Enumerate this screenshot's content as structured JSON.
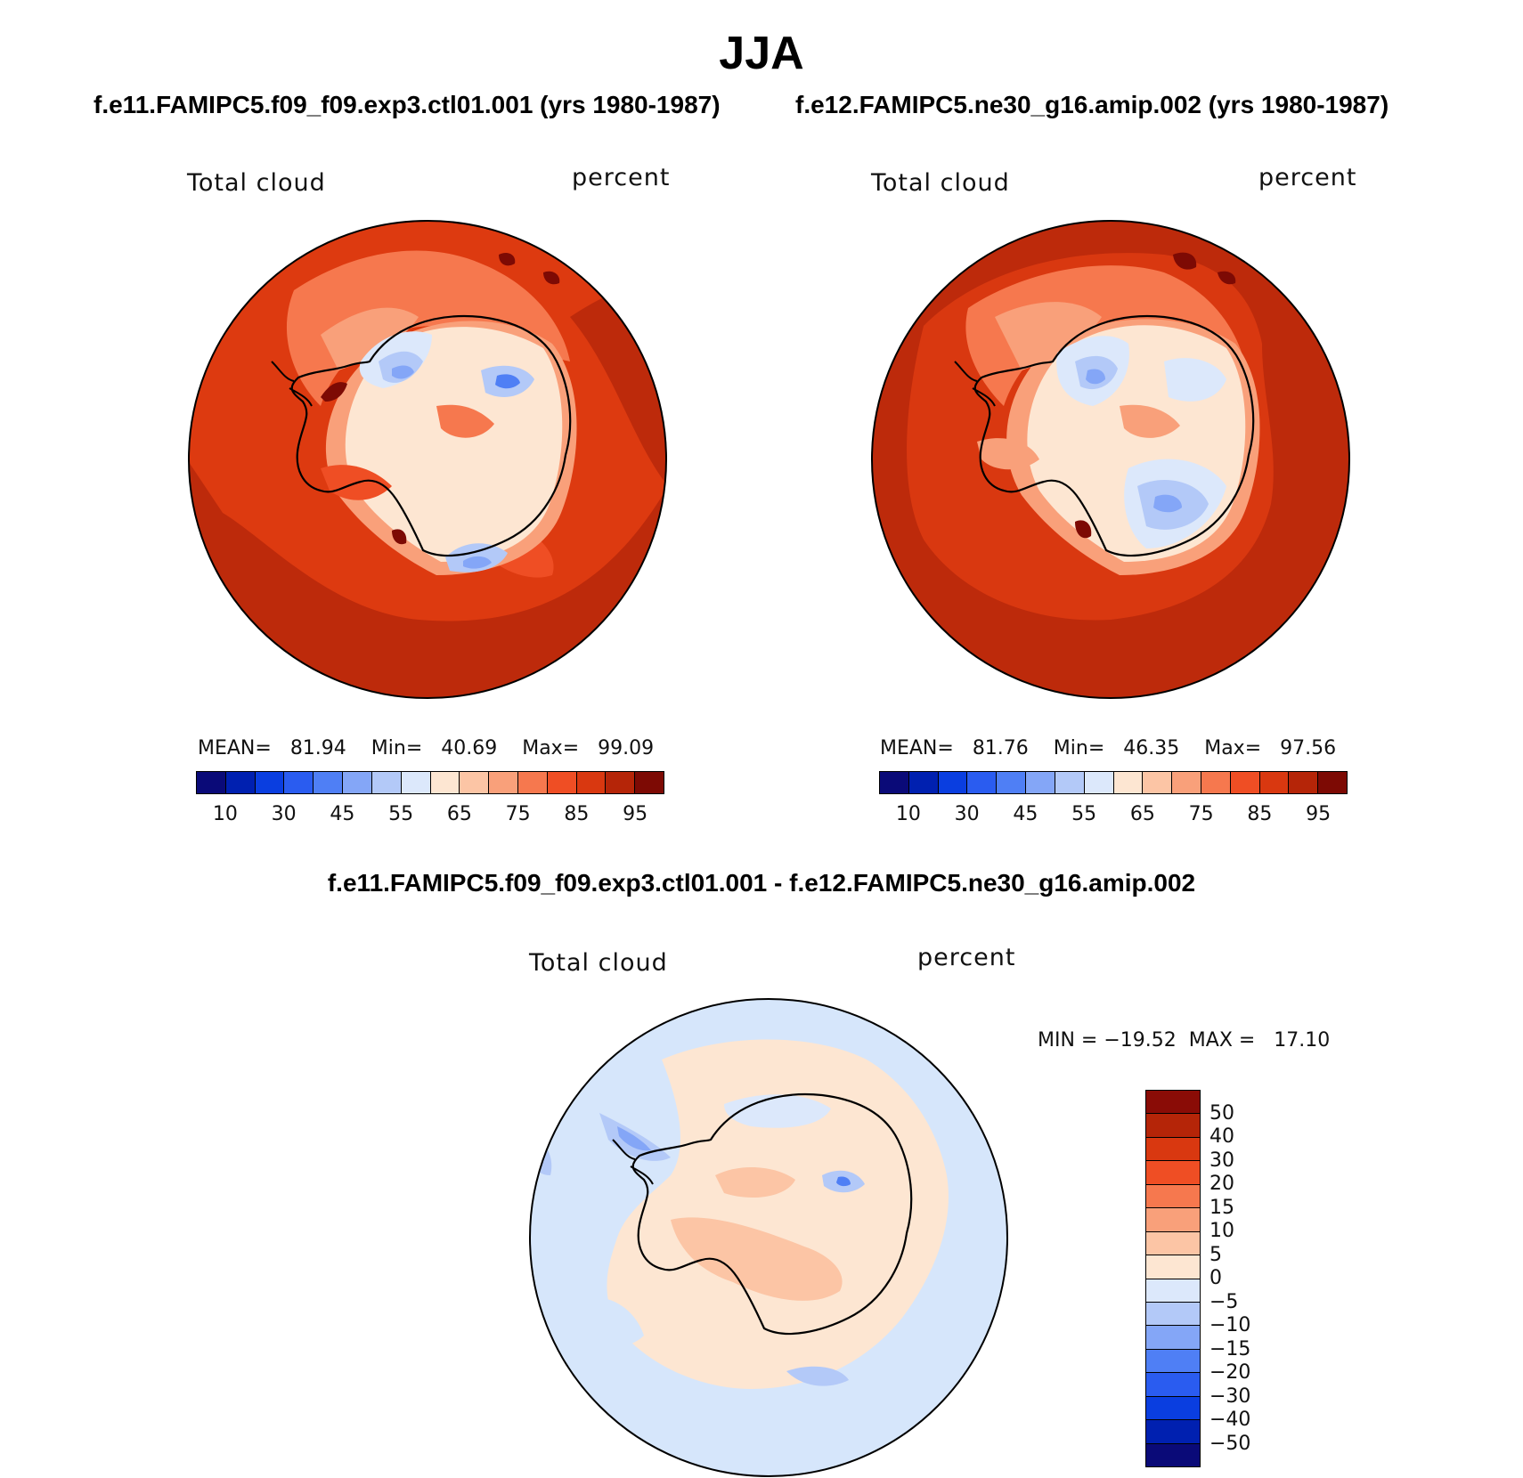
{
  "title": "JJA",
  "panels": [
    {
      "case_title": "f.e11.FAMIPC5.f09_f09.exp3.ctl01.001 (yrs 1980-1987)",
      "var_label": "Total cloud",
      "units_label": "percent",
      "stats": {
        "mean_label": "MEAN=",
        "mean": "81.94",
        "min_label": "Min=",
        "min": "40.69",
        "max_label": "Max=",
        "max": "99.09"
      }
    },
    {
      "case_title": "f.e12.FAMIPC5.ne30_g16.amip.002 (yrs 1980-1987)",
      "var_label": "Total cloud",
      "units_label": "percent",
      "stats": {
        "mean_label": "MEAN=",
        "mean": "81.76",
        "min_label": "Min=",
        "min": "46.35",
        "max_label": "Max=",
        "max": "97.56"
      }
    }
  ],
  "abs_colorbar": {
    "ticks": [
      "10",
      "30",
      "45",
      "55",
      "65",
      "75",
      "85",
      "95"
    ],
    "colors": [
      "#0a0a78",
      "#0020b0",
      "#0a3ee0",
      "#2a5cf0",
      "#4f7ff5",
      "#84a6f7",
      "#b3c9f8",
      "#dce8fb",
      "#fde6d2",
      "#fcc5a5",
      "#f9a07a",
      "#f6784e",
      "#ef4e24",
      "#d93810",
      "#b52508",
      "#7d0a04"
    ]
  },
  "diff_panel": {
    "title": "f.e11.FAMIPC5.f09_f09.exp3.ctl01.001 - f.e12.FAMIPC5.ne30_g16.amip.002",
    "var_label": "Total cloud",
    "units_label": "percent",
    "min_label": "MIN =",
    "min": "−19.52",
    "max_label": "MAX =",
    "max": "17.10",
    "colorbar": {
      "ticks": [
        "50",
        "40",
        "30",
        "20",
        "15",
        "10",
        "5",
        "0",
        "−5",
        "−10",
        "−15",
        "−20",
        "−30",
        "−40",
        "−50"
      ],
      "colors": [
        "#8a0c06",
        "#b52508",
        "#d93810",
        "#ef4e24",
        "#f6784e",
        "#f9a07a",
        "#fcc5a5",
        "#fde6d2",
        "#dce8fb",
        "#b3c9f8",
        "#84a6f7",
        "#4f7ff5",
        "#2a5cf0",
        "#0a3ee0",
        "#0020b0",
        "#0a0a78"
      ]
    }
  },
  "colors": {
    "ocean_high": "#bd2a0b",
    "ocean_mid": "#dd3a10",
    "diff_background": "#d6e6fb",
    "diff_positive": "#fde6d2",
    "coastline": "#000000"
  }
}
